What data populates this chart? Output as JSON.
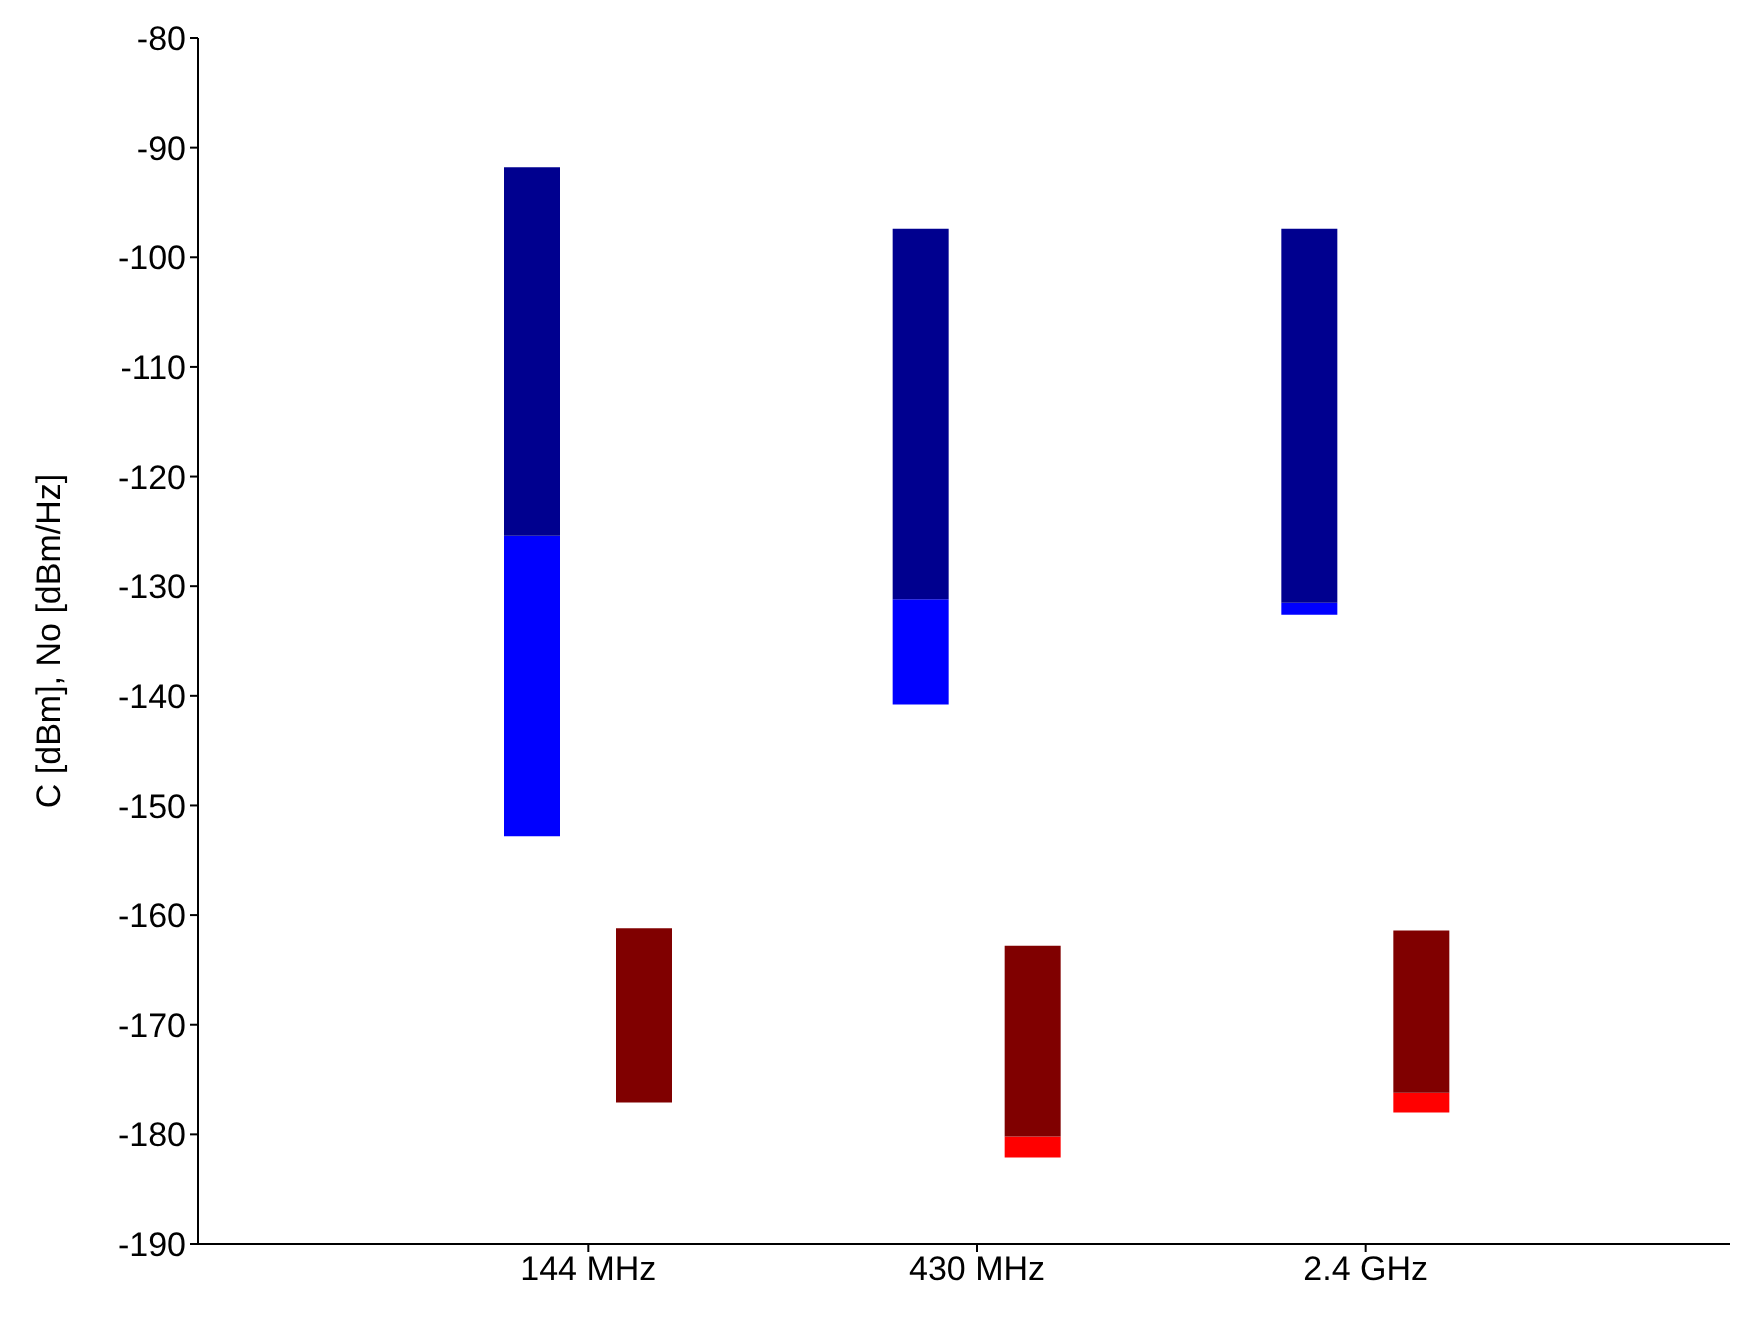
{
  "chart_data": {
    "type": "bar",
    "ylabel": "C [dBm], No [dBm/Hz]",
    "categories": [
      "144 MHz",
      "430 MHz",
      "2.4 GHz"
    ],
    "ylim": [
      -190,
      -80
    ],
    "yticks": [
      -190,
      -180,
      -170,
      -160,
      -150,
      -140,
      -130,
      -120,
      -110,
      -100,
      -90,
      -80
    ],
    "grid": false,
    "series": [
      {
        "color": "#0000ff",
        "base": [
          -152.8,
          -140.8,
          -132.6
        ],
        "values": [
          27.4,
          9.6,
          1.1
        ]
      },
      {
        "color": "#00008f",
        "base": [
          -125.4,
          -131.2,
          -131.5
        ],
        "values": [
          33.6,
          33.8,
          34.1
        ]
      },
      {
        "color": "#ff0000",
        "base": [
          null,
          -182.1,
          -178.0
        ],
        "values": [
          null,
          1.9,
          1.8
        ]
      },
      {
        "color": "#800000",
        "base": [
          -177.1,
          -180.2,
          -176.2
        ],
        "values": [
          15.9,
          17.4,
          14.8
        ]
      }
    ]
  }
}
